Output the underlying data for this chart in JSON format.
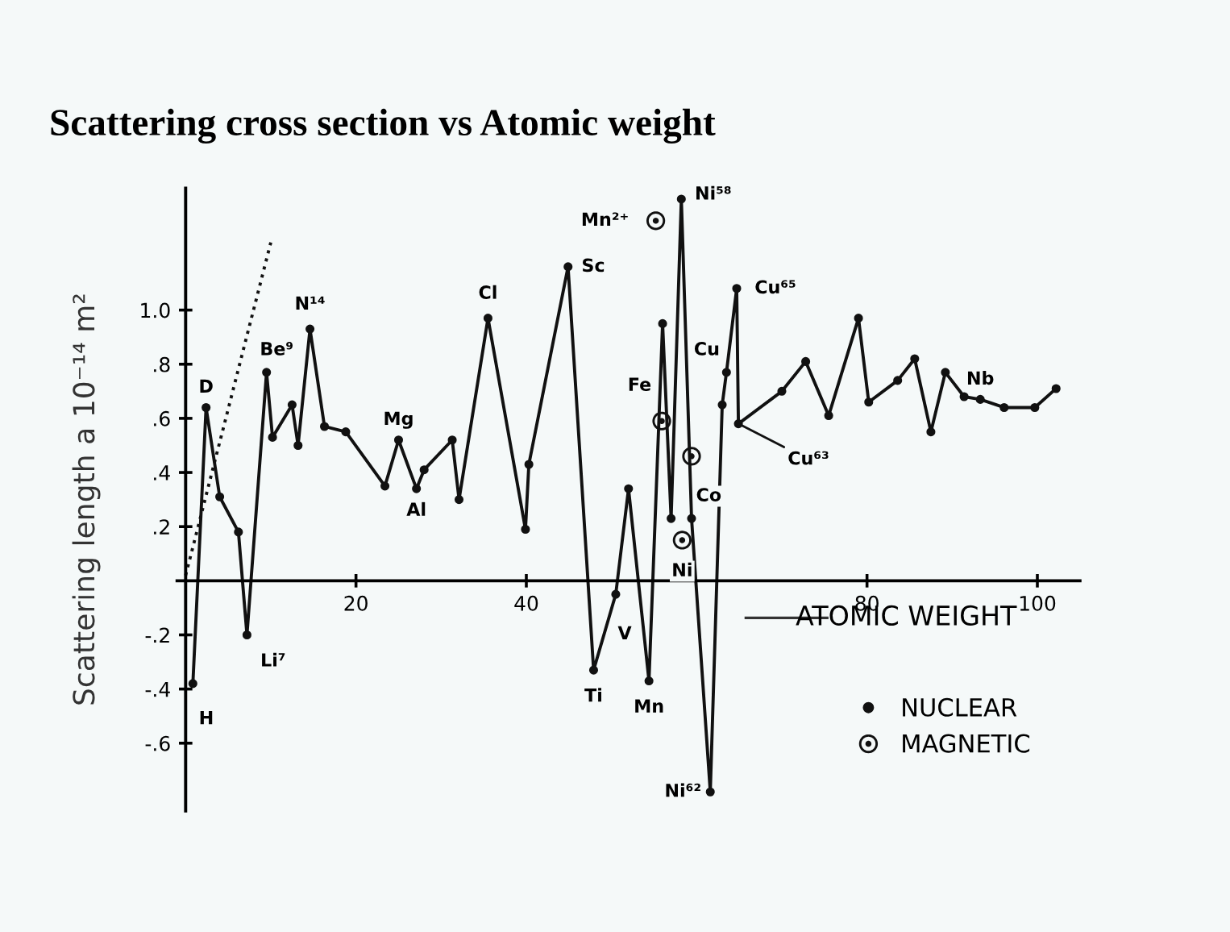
{
  "chart_data": {
    "type": "line",
    "title": "Scattering cross section vs Atomic weight",
    "xlabel": "ATOMIC WEIGHT",
    "ylabel": "Scattering length a 10⁻¹⁴ m²",
    "series": [
      {
        "name": "NUCLEAR",
        "color": "#111111",
        "marker": "circle",
        "x": [
          0.85,
          2.4,
          4.0,
          6.2,
          7.2,
          9.5,
          10.2,
          12.5,
          13.2,
          14.6,
          16.3,
          18.8,
          23.4,
          25.0,
          27.1,
          28.0,
          31.3,
          32.1,
          35.5,
          39.9,
          40.3,
          44.9,
          47.9,
          50.5,
          52.0,
          54.4,
          56.0,
          57.0,
          58.2,
          59.4,
          61.6,
          63.0,
          63.5,
          64.7,
          64.9,
          70.0,
          72.8,
          75.5,
          79.0,
          80.2,
          83.6,
          85.6,
          87.5,
          89.2,
          91.4,
          93.3,
          96.1,
          99.7,
          102.2
        ],
        "values": [
          -0.38,
          0.64,
          0.31,
          0.18,
          -0.2,
          0.77,
          0.53,
          0.65,
          0.5,
          0.93,
          0.57,
          0.55,
          0.35,
          0.52,
          0.34,
          0.41,
          0.52,
          0.3,
          0.97,
          0.19,
          0.43,
          1.16,
          -0.33,
          -0.05,
          0.34,
          -0.37,
          0.95,
          0.23,
          1.41,
          0.23,
          -0.78,
          0.65,
          0.77,
          1.08,
          0.58,
          0.7,
          0.81,
          0.61,
          0.97,
          0.66,
          0.74,
          0.82,
          0.55,
          0.77,
          0.68,
          0.67,
          0.64,
          0.64,
          0.71
        ]
      },
      {
        "name": "MAGNETIC",
        "type": "scatter",
        "color": "#111111",
        "marker": "circle",
        "x": [
          55.2,
          55.9,
          58.3,
          59.4
        ],
        "values": [
          1.33,
          0.59,
          0.15,
          0.46
        ]
      },
      {
        "color": "#111111",
        "line_style": "dotted",
        "marker": "none",
        "x": [
          0,
          10.0
        ],
        "values": [
          0.02,
          1.25
        ]
      }
    ],
    "xlim": [
      -1,
      105
    ],
    "ylim": [
      -0.85,
      1.45
    ],
    "xticks": [
      20,
      40,
      80,
      100
    ],
    "yticks": [
      {
        "value": -0.6,
        "label": "-.6"
      },
      {
        "value": -0.4,
        "label": "-.4"
      },
      {
        "value": -0.2,
        "label": "-.2"
      },
      {
        "value": 0.2,
        "label": ".2"
      },
      {
        "value": 0.4,
        "label": ".4"
      },
      {
        "value": 0.6,
        "label": ".6"
      },
      {
        "value": 0.8,
        "label": ".8"
      },
      {
        "value": 1.0,
        "label": "1.0"
      }
    ],
    "grid": false,
    "legend": "bottom right",
    "annotations": [
      {
        "text": "H",
        "x": 0.85,
        "y": -0.38
      },
      {
        "text": "D",
        "x": 2.4,
        "y": 0.64
      },
      {
        "text": "Li⁷",
        "x": 7.2,
        "y": -0.2
      },
      {
        "text": "Be⁹",
        "x": 9.5,
        "y": 0.77
      },
      {
        "text": "N¹⁴",
        "x": 14.6,
        "y": 0.93
      },
      {
        "text": "Mg",
        "x": 25.0,
        "y": 0.52
      },
      {
        "text": "Al",
        "x": 27.1,
        "y": 0.34
      },
      {
        "text": "Cl",
        "x": 35.5,
        "y": 0.97
      },
      {
        "text": "Sc",
        "x": 44.9,
        "y": 1.16
      },
      {
        "text": "Ti",
        "x": 47.9,
        "y": -0.33
      },
      {
        "text": "V",
        "x": 50.5,
        "y": -0.05
      },
      {
        "text": "Mn",
        "x": 54.4,
        "y": -0.37
      },
      {
        "text": "Fe",
        "x": 56.0,
        "y": 0.72
      },
      {
        "text": "Mn²⁺",
        "x": 55.2,
        "y": 1.33
      },
      {
        "text": "Ni⁵⁸",
        "x": 58.2,
        "y": 1.41
      },
      {
        "text": "Ni",
        "x": 58.3,
        "y": 0.15
      },
      {
        "text": "Co",
        "x": 59.4,
        "y": 0.46
      },
      {
        "text": "Ni⁶²",
        "x": 61.6,
        "y": -0.78
      },
      {
        "text": "Cu",
        "x": 63.5,
        "y": 0.77
      },
      {
        "text": "Cu⁶⁵",
        "x": 64.7,
        "y": 1.08
      },
      {
        "text": "Cu⁶³",
        "x": 64.9,
        "y": 0.58
      },
      {
        "text": "Nb",
        "x": 93.3,
        "y": 0.67
      }
    ]
  }
}
